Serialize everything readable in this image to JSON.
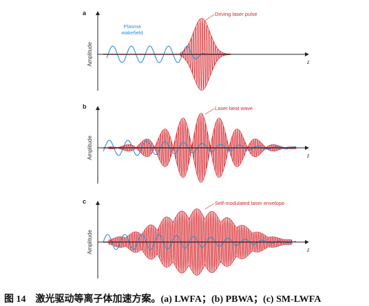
{
  "panels": [
    {
      "letter": "a",
      "ylabel": "Amplitude",
      "xlabel": "z",
      "red_label": "Driving laser pulse",
      "blue_label_lines": [
        "Plasma",
        "wakefield"
      ]
    },
    {
      "letter": "b",
      "ylabel": "Amplitude",
      "xlabel": "z",
      "red_label": "Laser beat wave"
    },
    {
      "letter": "c",
      "ylabel": "Amplitude",
      "xlabel": "z",
      "red_label": "Self-modulated laser envelope"
    }
  ],
  "caption": {
    "number": "图 14",
    "text": "激光驱动等离子体加速方案。(a) LWFA；(b) PBWA；(c) SM-LWFA"
  },
  "colors": {
    "laser": "#d2232a",
    "laser_fill": "#f2a7a8",
    "wake": "#2a8fd0",
    "axis": "#222222"
  }
}
